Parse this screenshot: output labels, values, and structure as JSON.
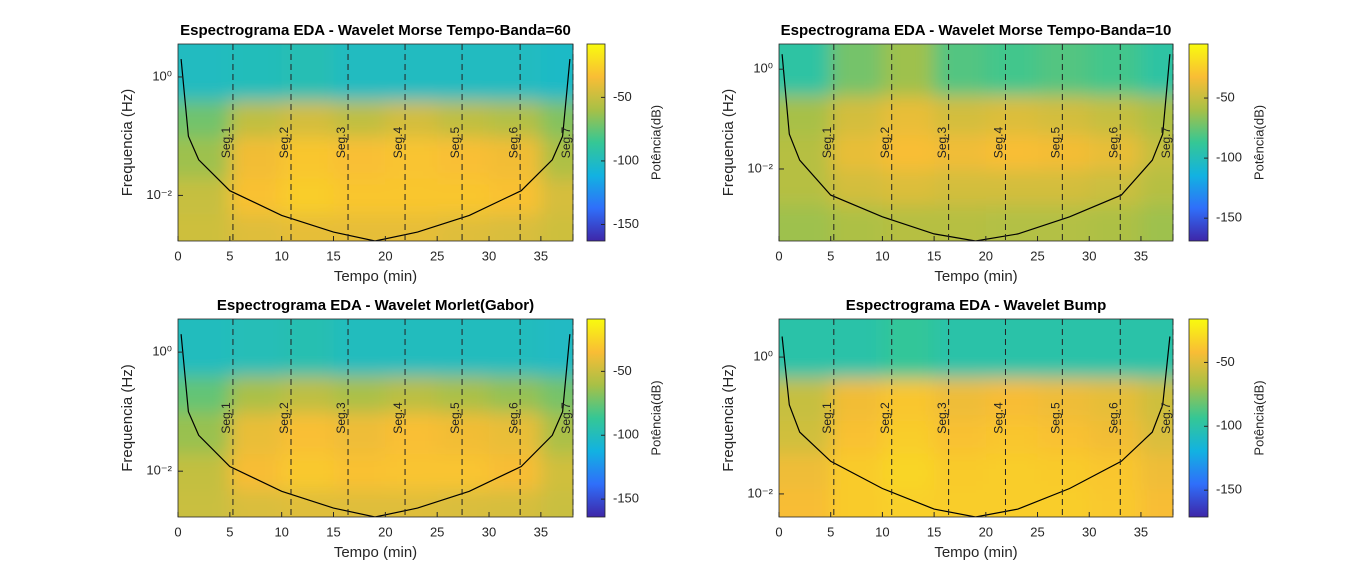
{
  "chart_data": [
    {
      "type": "heatmap",
      "title": "Espectrograma EDA - Wavelet Morse Tempo-Banda=60",
      "xlabel": "Tempo (min)",
      "ylabel": "Frequencia (Hz)",
      "colorbar_label": "Potência(dB)",
      "xlim": [
        0,
        38.1
      ],
      "xticks": [
        0,
        5,
        10,
        15,
        20,
        25,
        30,
        35
      ],
      "ylim": [
        0.0017,
        3.6
      ],
      "yscale": "log",
      "yticks": [
        {
          "value": 1,
          "label": "10⁰"
        },
        {
          "value": 0.01,
          "label": "10⁻²"
        }
      ],
      "clim": [
        -163,
        -8
      ],
      "cticks": [
        -50,
        -100,
        -150
      ],
      "colormap": [
        "#3e26a8",
        "#2f6ffa",
        "#12b2e1",
        "#35c795",
        "#a8c046",
        "#f9bd35",
        "#f9fb0e"
      ],
      "x_edges": [
        0,
        5,
        10,
        15,
        20,
        25,
        30,
        35,
        38.1
      ],
      "y_edges": [
        0.0017,
        0.005,
        0.02,
        0.1,
        0.4,
        3.6
      ],
      "z": [
        [
          -48,
          -42,
          -40,
          -40,
          -40,
          -42,
          -44,
          -48
        ],
        [
          -50,
          -32,
          -27,
          -30,
          -30,
          -30,
          -32,
          -45
        ],
        [
          -62,
          -36,
          -30,
          -33,
          -31,
          -33,
          -36,
          -58
        ],
        [
          -72,
          -52,
          -46,
          -52,
          -46,
          -52,
          -56,
          -68
        ],
        [
          -100,
          -98,
          -96,
          -100,
          -100,
          -100,
          -100,
          -102
        ]
      ],
      "coi": {
        "x": [
          0.3,
          1,
          2,
          5,
          10,
          15,
          19,
          23.1,
          28.1,
          33.1,
          36.1,
          37.1,
          37.8
        ],
        "y": [
          2,
          0.1,
          0.04,
          0.012,
          0.0046,
          0.0024,
          0.0017,
          0.0024,
          0.0046,
          0.012,
          0.04,
          0.1,
          2
        ]
      },
      "segments": {
        "labels": [
          "Seg.1",
          "Seg.2",
          "Seg.3",
          "Seg.4",
          "Seg.5",
          "Seg.6",
          "Seg.7"
        ],
        "x": [
          5.3,
          10.9,
          16.4,
          21.9,
          27.4,
          33.0,
          38.1
        ]
      }
    },
    {
      "type": "heatmap",
      "title": "Espectrograma EDA - Wavelet Morse Tempo-Banda=10",
      "xlabel": "Tempo (min)",
      "ylabel": "Frequencia (Hz)",
      "colorbar_label": "Potência(dB)",
      "xlim": [
        0,
        38.1
      ],
      "xticks": [
        0,
        5,
        10,
        15,
        20,
        25,
        30,
        35
      ],
      "ylim": [
        0.00036,
        3.2
      ],
      "yscale": "log",
      "yticks": [
        {
          "value": 1,
          "label": "10⁰"
        },
        {
          "value": 0.01,
          "label": "10⁻²"
        }
      ],
      "clim": [
        -169,
        -5
      ],
      "cticks": [
        -50,
        -100,
        -150
      ],
      "colormap": [
        "#3e26a8",
        "#2f6ffa",
        "#12b2e1",
        "#35c795",
        "#a8c046",
        "#f9bd35",
        "#f9fb0e"
      ],
      "x_edges": [
        0,
        5,
        10,
        15,
        20,
        25,
        30,
        35,
        38.1
      ],
      "y_edges": [
        0.00036,
        0.002,
        0.01,
        0.05,
        0.3,
        3.2
      ],
      "z": [
        [
          -62,
          -58,
          -55,
          -55,
          -56,
          -56,
          -58,
          -62
        ],
        [
          -55,
          -45,
          -42,
          -45,
          -45,
          -45,
          -48,
          -55
        ],
        [
          -55,
          -38,
          -32,
          -35,
          -32,
          -34,
          -38,
          -50
        ],
        [
          -60,
          -45,
          -38,
          -45,
          -42,
          -45,
          -50,
          -58
        ],
        [
          -92,
          -72,
          -62,
          -80,
          -84,
          -80,
          -84,
          -92
        ]
      ],
      "coi": {
        "x": [
          0.3,
          1,
          2,
          5,
          10,
          15,
          19,
          23.1,
          28.1,
          33.1,
          36.1,
          37.1,
          37.8
        ],
        "y": [
          2,
          0.05,
          0.015,
          0.003,
          0.0011,
          0.0005,
          0.00036,
          0.0005,
          0.0011,
          0.003,
          0.015,
          0.05,
          2
        ]
      },
      "segments": {
        "labels": [
          "Seg.1",
          "Seg.2",
          "Seg.3",
          "Seg.4",
          "Seg.5",
          "Seg.6",
          "Seg.7"
        ],
        "x": [
          5.3,
          10.9,
          16.4,
          21.9,
          27.4,
          33.0,
          38.1
        ]
      }
    },
    {
      "type": "heatmap",
      "title": "Espectrograma EDA - Wavelet Morlet(Gabor)",
      "xlabel": "Tempo (min)",
      "ylabel": "Frequencia (Hz)",
      "colorbar_label": "Potência(dB)",
      "xlim": [
        0,
        38.1
      ],
      "xticks": [
        0,
        5,
        10,
        15,
        20,
        25,
        30,
        35
      ],
      "ylim": [
        0.0017,
        3.6
      ],
      "yscale": "log",
      "yticks": [
        {
          "value": 1,
          "label": "10⁰"
        },
        {
          "value": 0.01,
          "label": "10⁻²"
        }
      ],
      "clim": [
        -164,
        -9
      ],
      "cticks": [
        -50,
        -100,
        -150
      ],
      "colormap": [
        "#3e26a8",
        "#2f6ffa",
        "#12b2e1",
        "#35c795",
        "#a8c046",
        "#f9bd35",
        "#f9fb0e"
      ],
      "x_edges": [
        0,
        5,
        10,
        15,
        20,
        25,
        30,
        35,
        38.1
      ],
      "y_edges": [
        0.0017,
        0.005,
        0.02,
        0.1,
        0.4,
        3.6
      ],
      "z": [
        [
          -50,
          -45,
          -43,
          -43,
          -43,
          -45,
          -46,
          -50
        ],
        [
          -52,
          -35,
          -30,
          -33,
          -32,
          -32,
          -35,
          -48
        ],
        [
          -64,
          -40,
          -34,
          -38,
          -34,
          -37,
          -40,
          -60
        ],
        [
          -76,
          -60,
          -54,
          -60,
          -55,
          -60,
          -65,
          -72
        ],
        [
          -100,
          -98,
          -96,
          -100,
          -100,
          -100,
          -100,
          -102
        ]
      ],
      "coi": {
        "x": [
          0.3,
          1,
          2,
          5,
          10,
          15,
          19,
          23.1,
          28.1,
          33.1,
          36.1,
          37.1,
          37.8
        ],
        "y": [
          2,
          0.1,
          0.04,
          0.012,
          0.0046,
          0.0024,
          0.0017,
          0.0024,
          0.0046,
          0.012,
          0.04,
          0.1,
          2
        ]
      },
      "segments": {
        "labels": [
          "Seg.1",
          "Seg.2",
          "Seg.3",
          "Seg.4",
          "Seg.5",
          "Seg.6",
          "Seg.7"
        ],
        "x": [
          5.3,
          10.9,
          16.4,
          21.9,
          27.4,
          33.0,
          38.1
        ]
      }
    },
    {
      "type": "heatmap",
      "title": "Espectrograma EDA - Wavelet Bump",
      "xlabel": "Tempo (min)",
      "ylabel": "Frequencia (Hz)",
      "colorbar_label": "Potência(dB)",
      "xlim": [
        0,
        38.1
      ],
      "xticks": [
        0,
        5,
        10,
        15,
        20,
        25,
        30,
        35
      ],
      "ylim": [
        0.0046,
        3.6
      ],
      "yscale": "log",
      "yticks": [
        {
          "value": 1,
          "label": "10⁰"
        },
        {
          "value": 0.01,
          "label": "10⁻²"
        }
      ],
      "clim": [
        -171,
        -16
      ],
      "cticks": [
        -50,
        -100,
        -150
      ],
      "colormap": [
        "#3e26a8",
        "#2f6ffa",
        "#12b2e1",
        "#35c795",
        "#a8c046",
        "#f9bd35",
        "#f9fb0e"
      ],
      "x_edges": [
        0,
        5,
        10,
        15,
        20,
        25,
        30,
        35,
        38.1
      ],
      "y_edges": [
        0.0046,
        0.012,
        0.04,
        0.12,
        0.5,
        3.6
      ],
      "z": [
        [
          -42,
          -36,
          -34,
          -35,
          -35,
          -35,
          -37,
          -42
        ],
        [
          -45,
          -36,
          -32,
          -36,
          -35,
          -36,
          -38,
          -45
        ],
        [
          -55,
          -40,
          -35,
          -40,
          -38,
          -40,
          -44,
          -52
        ],
        [
          -58,
          -44,
          -38,
          -45,
          -42,
          -45,
          -48,
          -56
        ],
        [
          -100,
          -100,
          -95,
          -100,
          -100,
          -100,
          -100,
          -100
        ]
      ],
      "coi": {
        "x": [
          0.3,
          1,
          2,
          5,
          10,
          15,
          19,
          23.1,
          28.1,
          33.1,
          36.1,
          37.1,
          37.8
        ],
        "y": [
          2,
          0.2,
          0.08,
          0.03,
          0.012,
          0.006,
          0.0046,
          0.006,
          0.012,
          0.03,
          0.08,
          0.2,
          2
        ]
      },
      "segments": {
        "labels": [
          "Seg.1",
          "Seg.2",
          "Seg.3",
          "Seg.4",
          "Seg.5",
          "Seg.6",
          "Seg.7"
        ],
        "x": [
          5.3,
          10.9,
          16.4,
          21.9,
          27.4,
          33.0,
          38.1
        ]
      }
    }
  ]
}
